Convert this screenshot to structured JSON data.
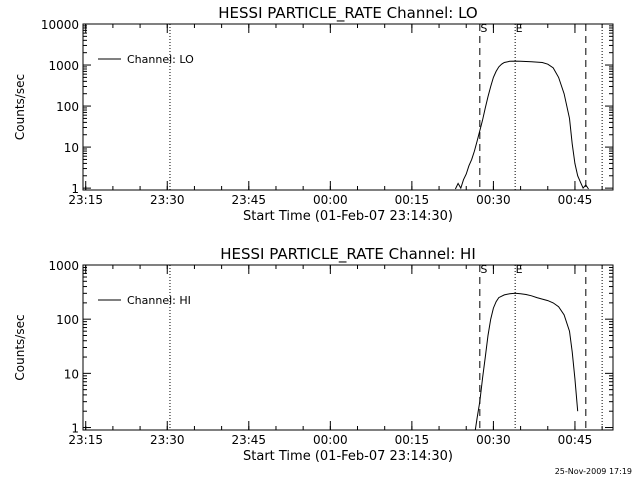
{
  "footer": {
    "timestamp": "25-Nov-2009 17:19"
  },
  "chart_data": [
    {
      "type": "line",
      "title": "HESSI PARTICLE_RATE Channel: LO",
      "xlabel": "Start Time (01-Feb-07 23:14:30)",
      "ylabel": "Counts/sec",
      "y_scale": "log",
      "ylim": [
        0.9,
        10000
      ],
      "xlim": [
        "23:14:30",
        "00:52:00"
      ],
      "x_ticks": [
        "23:15",
        "23:30",
        "23:45",
        "00:00",
        "00:15",
        "00:30",
        "00:45"
      ],
      "y_ticks": [
        "1",
        "10",
        "100",
        "1000",
        "10000"
      ],
      "legend": {
        "position": "top-left",
        "entries": [
          "Channel: LO"
        ]
      },
      "markers": [
        {
          "label": "S",
          "time": "00:27:30",
          "style": "dashed"
        },
        {
          "label": "E",
          "time": "00:34:00",
          "style": "dotted"
        },
        {
          "label": "",
          "time": "00:47:00",
          "style": "dashed"
        },
        {
          "label": "",
          "time": "00:50:00",
          "style": "dotted"
        },
        {
          "label": "",
          "time": "23:30:30",
          "style": "dotted"
        }
      ],
      "series": [
        {
          "name": "Channel: LO",
          "points": [
            [
              "00:23:00",
              0.95
            ],
            [
              "00:23:30",
              1.3
            ],
            [
              "00:24:00",
              1.0
            ],
            [
              "00:24:30",
              1.6
            ],
            [
              "00:25:00",
              2.2
            ],
            [
              "00:25:30",
              3.5
            ],
            [
              "00:26:00",
              5
            ],
            [
              "00:26:30",
              8
            ],
            [
              "00:27:00",
              14
            ],
            [
              "00:27:30",
              25
            ],
            [
              "00:28:00",
              45
            ],
            [
              "00:28:30",
              90
            ],
            [
              "00:29:00",
              170
            ],
            [
              "00:29:30",
              300
            ],
            [
              "00:30:00",
              500
            ],
            [
              "00:30:30",
              700
            ],
            [
              "00:31:00",
              900
            ],
            [
              "00:31:30",
              1050
            ],
            [
              "00:32:00",
              1150
            ],
            [
              "00:33:00",
              1230
            ],
            [
              "00:34:00",
              1250
            ],
            [
              "00:35:00",
              1240
            ],
            [
              "00:36:00",
              1220
            ],
            [
              "00:37:00",
              1200
            ],
            [
              "00:38:00",
              1180
            ],
            [
              "00:39:00",
              1150
            ],
            [
              "00:40:00",
              1050
            ],
            [
              "00:41:00",
              850
            ],
            [
              "00:42:00",
              500
            ],
            [
              "00:43:00",
              200
            ],
            [
              "00:44:00",
              50
            ],
            [
              "00:44:30",
              12
            ],
            [
              "00:45:00",
              4
            ],
            [
              "00:45:30",
              2
            ],
            [
              "00:46:00",
              1.4
            ],
            [
              "00:46:30",
              1.0
            ],
            [
              "00:47:00",
              1.2
            ],
            [
              "00:47:30",
              0.95
            ]
          ]
        }
      ]
    },
    {
      "type": "line",
      "title": "HESSI PARTICLE_RATE Channel: HI",
      "xlabel": "Start Time (01-Feb-07 23:14:30)",
      "ylabel": "Counts/sec",
      "y_scale": "log",
      "ylim": [
        0.9,
        1000
      ],
      "xlim": [
        "23:14:30",
        "00:52:00"
      ],
      "x_ticks": [
        "23:15",
        "23:30",
        "23:45",
        "00:00",
        "00:15",
        "00:30",
        "00:45"
      ],
      "y_ticks": [
        "1",
        "10",
        "100",
        "1000"
      ],
      "legend": {
        "position": "top-left",
        "entries": [
          "Channel: HI"
        ]
      },
      "markers": [
        {
          "label": "S",
          "time": "00:27:30",
          "style": "dashed"
        },
        {
          "label": "E",
          "time": "00:34:00",
          "style": "dotted"
        },
        {
          "label": "",
          "time": "00:47:00",
          "style": "dashed"
        },
        {
          "label": "",
          "time": "00:50:00",
          "style": "dotted"
        },
        {
          "label": "",
          "time": "23:30:30",
          "style": "dotted"
        }
      ],
      "series": [
        {
          "name": "Channel: HI",
          "points": [
            [
              "00:26:40",
              0.9
            ],
            [
              "00:27:00",
              1.5
            ],
            [
              "00:27:30",
              3
            ],
            [
              "00:28:00",
              8
            ],
            [
              "00:28:30",
              20
            ],
            [
              "00:29:00",
              50
            ],
            [
              "00:29:30",
              100
            ],
            [
              "00:30:00",
              160
            ],
            [
              "00:30:30",
              210
            ],
            [
              "00:31:00",
              250
            ],
            [
              "00:32:00",
              280
            ],
            [
              "00:33:00",
              295
            ],
            [
              "00:34:00",
              300
            ],
            [
              "00:35:00",
              295
            ],
            [
              "00:36:00",
              285
            ],
            [
              "00:37:00",
              270
            ],
            [
              "00:38:00",
              250
            ],
            [
              "00:39:00",
              235
            ],
            [
              "00:40:00",
              220
            ],
            [
              "00:41:00",
              200
            ],
            [
              "00:42:00",
              170
            ],
            [
              "00:43:00",
              120
            ],
            [
              "00:44:00",
              60
            ],
            [
              "00:44:30",
              25
            ],
            [
              "00:45:00",
              8
            ],
            [
              "00:45:30",
              2
            ]
          ]
        }
      ]
    }
  ]
}
